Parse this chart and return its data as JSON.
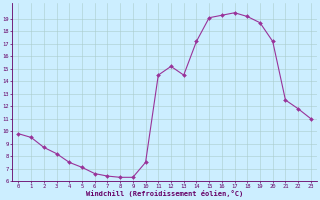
{
  "x": [
    0,
    1,
    2,
    3,
    4,
    5,
    6,
    7,
    8,
    9,
    10,
    11,
    12,
    13,
    14,
    15,
    16,
    17,
    18,
    19,
    20,
    21,
    22,
    23
  ],
  "y": [
    9.8,
    9.5,
    8.7,
    8.2,
    7.5,
    7.1,
    6.6,
    6.4,
    6.3,
    6.3,
    7.5,
    14.5,
    15.2,
    14.5,
    17.2,
    19.1,
    19.3,
    19.5,
    19.2,
    18.7,
    17.2,
    12.5,
    11.8,
    11.0
  ],
  "line_color": "#993399",
  "marker_color": "#993399",
  "bg_color": "#cceeff",
  "grid_color": "#aacccc",
  "xlabel": "Windchill (Refroidissement éolien,°C)",
  "ylim_min": 6,
  "ylim_max": 20,
  "xlim_min": -0.5,
  "xlim_max": 23.5,
  "yticks": [
    6,
    7,
    8,
    9,
    10,
    11,
    12,
    13,
    14,
    15,
    16,
    17,
    18,
    19
  ],
  "xticks": [
    0,
    1,
    2,
    3,
    4,
    5,
    6,
    7,
    8,
    9,
    10,
    11,
    12,
    13,
    14,
    15,
    16,
    17,
    18,
    19,
    20,
    21,
    22,
    23
  ],
  "xlabel_color": "#660066",
  "tick_color": "#660066",
  "spine_color": "#660066",
  "tick_fontsize": 4.0,
  "xlabel_fontsize": 5.0,
  "linewidth": 0.8,
  "markersize": 2.0
}
